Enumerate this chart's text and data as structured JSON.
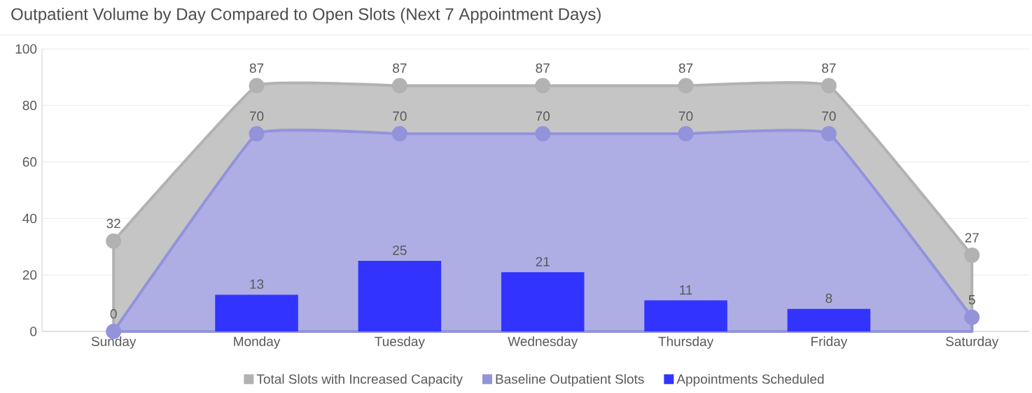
{
  "chart_data": {
    "type": "area",
    "title": "Outpatient Volume by Day Compared to Open Slots (Next 7 Appointment Days)",
    "categories": [
      "Sunday",
      "Monday",
      "Tuesday",
      "Wednesday",
      "Thursday",
      "Friday",
      "Saturday"
    ],
    "series": [
      {
        "name": "Total Slots with Increased Capacity",
        "color": "#b2b2b2",
        "values": [
          32,
          87,
          87,
          87,
          87,
          87,
          27
        ]
      },
      {
        "name": "Baseline Outpatient Slots",
        "color": "#9393dc",
        "values": [
          0,
          70,
          70,
          70,
          70,
          70,
          5
        ]
      },
      {
        "name": "Appointments Scheduled",
        "type": "bar",
        "color": "#3333ff",
        "values": [
          null,
          13,
          25,
          21,
          11,
          8,
          null
        ]
      }
    ],
    "ylim": [
      0,
      100
    ],
    "yticks": [
      0,
      20,
      40,
      60,
      80,
      100
    ],
    "grid": "y",
    "legend": "bottom",
    "marker": "circle",
    "data_labels": true
  }
}
